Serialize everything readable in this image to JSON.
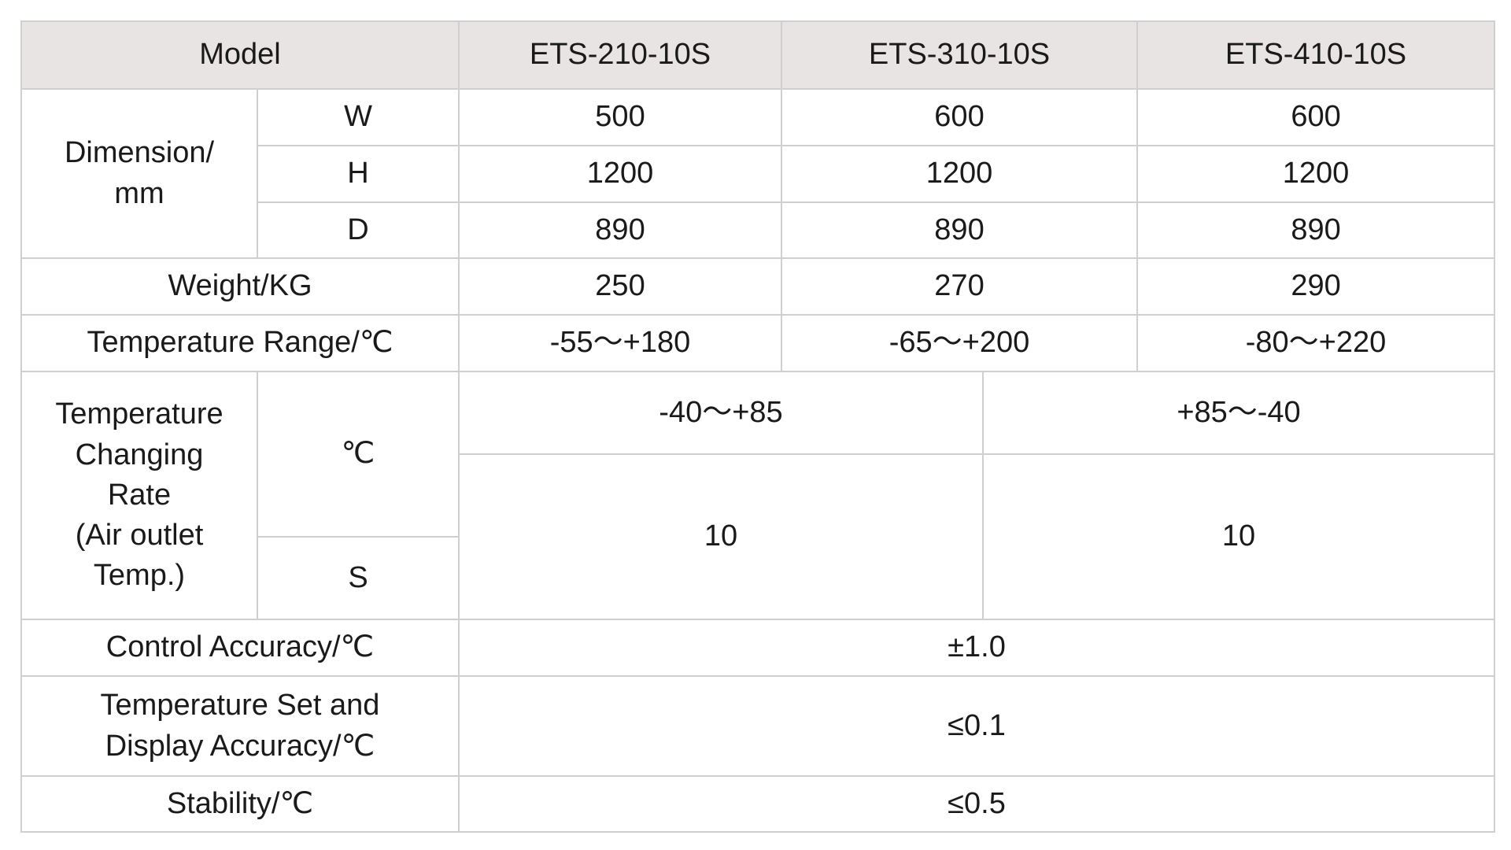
{
  "table": {
    "header": [
      "Model",
      "ETS-210-10S",
      "ETS-310-10S",
      "ETS-410-10S"
    ],
    "rows": [
      [
        "Dimension/\nmm",
        "W",
        "500",
        "600",
        "600"
      ],
      [
        "H",
        "1200",
        "1200",
        "1200"
      ],
      [
        "D",
        "890",
        "890",
        "890"
      ],
      [
        "Weight/KG",
        "250",
        "270",
        "290"
      ],
      [
        "Temperature Range/℃",
        "-55～+180",
        "-65～+200",
        "-80～+220"
      ],
      [
        "Temperature\nChanging\nRate\n(Air outlet\nTemp.)",
        "℃",
        "-40～+85",
        "+85～-40"
      ],
      [
        "10",
        "10"
      ],
      [
        "S"
      ],
      [
        "Control Accuracy/℃",
        "±1.0"
      ],
      [
        "Temperature Set and\nDisplay Accuracy/℃",
        "≤0.1"
      ],
      [
        "Stability/℃",
        "≤0.5"
      ]
    ]
  }
}
